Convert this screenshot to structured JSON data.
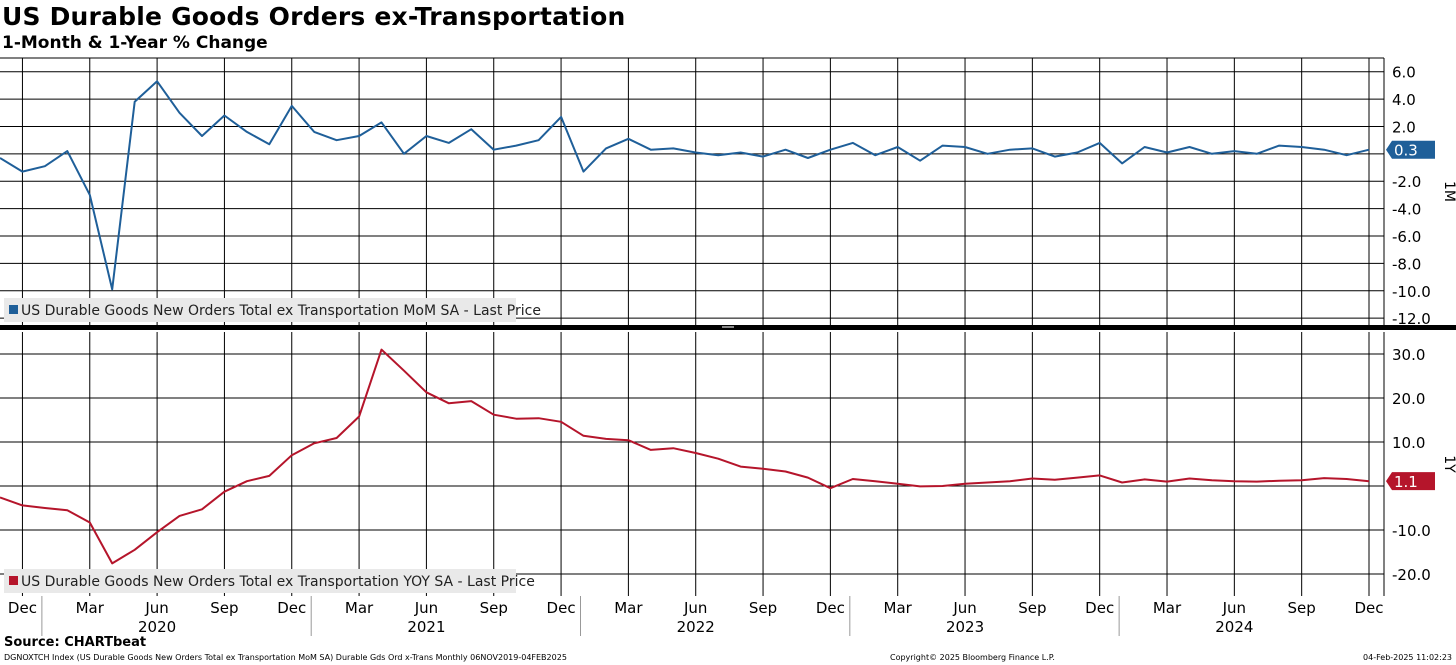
{
  "header": {
    "title": "US Durable Goods Orders ex-Transportation",
    "subtitle": "1-Month & 1-Year % Change"
  },
  "footer": {
    "source": "Source: CHARTbeat",
    "ticker_info": "DGNOXTCH Index (US Durable Goods New Orders Total ex Transportation MoM SA) Durable Gds Ord x-Trans  Monthly 06NOV2019-04FEB2025",
    "copyright": "Copyright© 2025 Bloomberg Finance L.P.",
    "timestamp": "04-Feb-2025 11:02:23"
  },
  "colors": {
    "mom": "#1f5f99",
    "yoy": "#b5152b",
    "grid": "#000000"
  },
  "chart_data": [
    {
      "type": "line",
      "panel": "top",
      "axis_label": "1M",
      "legend": "US Durable Goods New Orders Total ex Transportation MoM SA - Last Price",
      "last_value_label": "0.3",
      "ylim": [
        -12.5,
        7
      ],
      "yticks": [
        6,
        4,
        2,
        -2,
        -4,
        -6,
        -8,
        -10,
        -12
      ],
      "ytick_labels": [
        "6.0",
        "4.0",
        "2.0",
        "-2.0",
        "-4.0",
        "-6.0",
        "-8.0",
        "-10.0",
        "-12.0"
      ],
      "x": [
        "2019-11",
        "2019-12",
        "2020-01",
        "2020-02",
        "2020-03",
        "2020-04",
        "2020-05",
        "2020-06",
        "2020-07",
        "2020-08",
        "2020-09",
        "2020-10",
        "2020-11",
        "2020-12",
        "2021-01",
        "2021-02",
        "2021-03",
        "2021-04",
        "2021-05",
        "2021-06",
        "2021-07",
        "2021-08",
        "2021-09",
        "2021-10",
        "2021-11",
        "2021-12",
        "2022-01",
        "2022-02",
        "2022-03",
        "2022-04",
        "2022-05",
        "2022-06",
        "2022-07",
        "2022-08",
        "2022-09",
        "2022-10",
        "2022-11",
        "2022-12",
        "2023-01",
        "2023-02",
        "2023-03",
        "2023-04",
        "2023-05",
        "2023-06",
        "2023-07",
        "2023-08",
        "2023-09",
        "2023-10",
        "2023-11",
        "2023-12",
        "2024-01",
        "2024-02",
        "2024-03",
        "2024-04",
        "2024-05",
        "2024-06",
        "2024-07",
        "2024-08",
        "2024-09",
        "2024-10",
        "2024-11",
        "2024-12"
      ],
      "values": [
        -0.3,
        -1.3,
        -0.9,
        0.2,
        -3.0,
        -9.9,
        3.8,
        5.3,
        3.0,
        1.3,
        2.8,
        1.6,
        0.7,
        3.5,
        1.6,
        1.0,
        1.3,
        2.3,
        0.0,
        1.3,
        0.8,
        1.8,
        0.3,
        0.6,
        1.0,
        2.7,
        -1.3,
        0.4,
        1.1,
        0.3,
        0.4,
        0.1,
        -0.1,
        0.1,
        -0.2,
        0.3,
        -0.3,
        0.3,
        0.8,
        -0.1,
        0.5,
        -0.5,
        0.6,
        0.5,
        0.0,
        0.3,
        0.4,
        -0.2,
        0.1,
        0.8,
        -0.7,
        0.5,
        0.1,
        0.5,
        0.0,
        0.2,
        0.0,
        0.6,
        0.5,
        0.3,
        -0.1,
        0.3
      ]
    },
    {
      "type": "line",
      "panel": "bottom",
      "axis_label": "1Y",
      "legend": "US Durable Goods New Orders Total ex Transportation YOY SA - Last Price",
      "last_value_label": "1.1",
      "ylim": [
        -25,
        35
      ],
      "yticks": [
        30,
        20,
        10,
        -10,
        -20
      ],
      "ytick_labels": [
        "30.0",
        "20.0",
        "10.0",
        "-10.0",
        "-20.0"
      ],
      "x": [
        "2019-11",
        "2019-12",
        "2020-01",
        "2020-02",
        "2020-03",
        "2020-04",
        "2020-05",
        "2020-06",
        "2020-07",
        "2020-08",
        "2020-09",
        "2020-10",
        "2020-11",
        "2020-12",
        "2021-01",
        "2021-02",
        "2021-03",
        "2021-04",
        "2021-05",
        "2021-06",
        "2021-07",
        "2021-08",
        "2021-09",
        "2021-10",
        "2021-11",
        "2021-12",
        "2022-01",
        "2022-02",
        "2022-03",
        "2022-04",
        "2022-05",
        "2022-06",
        "2022-07",
        "2022-08",
        "2022-09",
        "2022-10",
        "2022-11",
        "2022-12",
        "2023-01",
        "2023-02",
        "2023-03",
        "2023-04",
        "2023-05",
        "2023-06",
        "2023-07",
        "2023-08",
        "2023-09",
        "2023-10",
        "2023-11",
        "2023-12",
        "2024-01",
        "2024-02",
        "2024-03",
        "2024-04",
        "2024-05",
        "2024-06",
        "2024-07",
        "2024-08",
        "2024-09",
        "2024-10",
        "2024-11",
        "2024-12"
      ],
      "values": [
        -2.6,
        -4.4,
        -5.0,
        -5.5,
        -8.3,
        -17.6,
        -14.5,
        -10.5,
        -6.8,
        -5.3,
        -1.3,
        1.1,
        2.3,
        7.0,
        9.7,
        10.9,
        15.8,
        31.0,
        26.2,
        21.3,
        18.8,
        19.3,
        16.2,
        15.3,
        15.4,
        14.6,
        11.4,
        10.7,
        10.4,
        8.2,
        8.6,
        7.5,
        6.2,
        4.4,
        3.9,
        3.3,
        1.9,
        -0.5,
        1.6,
        1.1,
        0.5,
        -0.1,
        0.0,
        0.5,
        0.8,
        1.1,
        1.7,
        1.4,
        1.9,
        2.4,
        0.8,
        1.5,
        1.0,
        1.7,
        1.3,
        1.1,
        1.0,
        1.2,
        1.3,
        1.8,
        1.6,
        1.1
      ]
    },
    {
      "type": "axis",
      "panel": "x-axis",
      "month_labels": [
        "Dec",
        "Mar",
        "Jun",
        "Sep",
        "Dec",
        "Mar",
        "Jun",
        "Sep",
        "Dec",
        "Mar",
        "Jun",
        "Sep",
        "Dec",
        "Mar",
        "Jun",
        "Sep",
        "Dec",
        "Mar",
        "Jun",
        "Sep",
        "Dec"
      ],
      "month_dates": [
        "2019-12",
        "2020-03",
        "2020-06",
        "2020-09",
        "2020-12",
        "2021-03",
        "2021-06",
        "2021-09",
        "2021-12",
        "2022-03",
        "2022-06",
        "2022-09",
        "2022-12",
        "2023-03",
        "2023-06",
        "2023-09",
        "2023-12",
        "2024-03",
        "2024-06",
        "2024-09",
        "2024-12"
      ],
      "year_labels": [
        "2020",
        "2021",
        "2022",
        "2023",
        "2024"
      ],
      "year_dates": [
        "2020-06",
        "2021-06",
        "2022-06",
        "2023-06",
        "2024-06"
      ]
    }
  ]
}
